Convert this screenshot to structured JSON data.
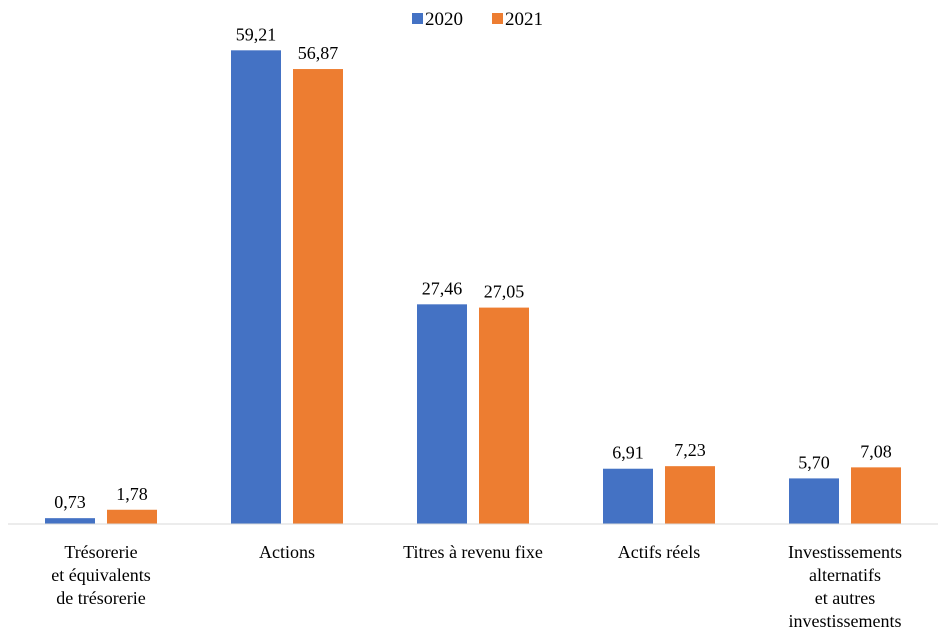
{
  "chart_data": {
    "type": "bar",
    "title": "",
    "xlabel": "",
    "ylabel": "",
    "ylim": [
      0,
      60
    ],
    "grid": false,
    "legend_position": "top-center",
    "categories": [
      [
        "Trésorerie",
        "et équivalents",
        "de trésorerie"
      ],
      [
        "Actions"
      ],
      [
        "Titres à revenu fixe"
      ],
      [
        "Actifs réels"
      ],
      [
        "Investissements",
        "alternatifs",
        "et autres",
        "investissements"
      ]
    ],
    "series": [
      {
        "name": "2020",
        "color": "#4472C4",
        "values": [
          0.73,
          59.21,
          27.46,
          6.91,
          5.7
        ],
        "labels": [
          "0,73",
          "59,21",
          "27,46",
          "6,91",
          "5,70"
        ]
      },
      {
        "name": "2021",
        "color": "#ED7D31",
        "values": [
          1.78,
          56.87,
          27.05,
          7.23,
          7.08
        ],
        "labels": [
          "1,78",
          "56,87",
          "27,05",
          "7,23",
          "7,08"
        ]
      }
    ]
  }
}
